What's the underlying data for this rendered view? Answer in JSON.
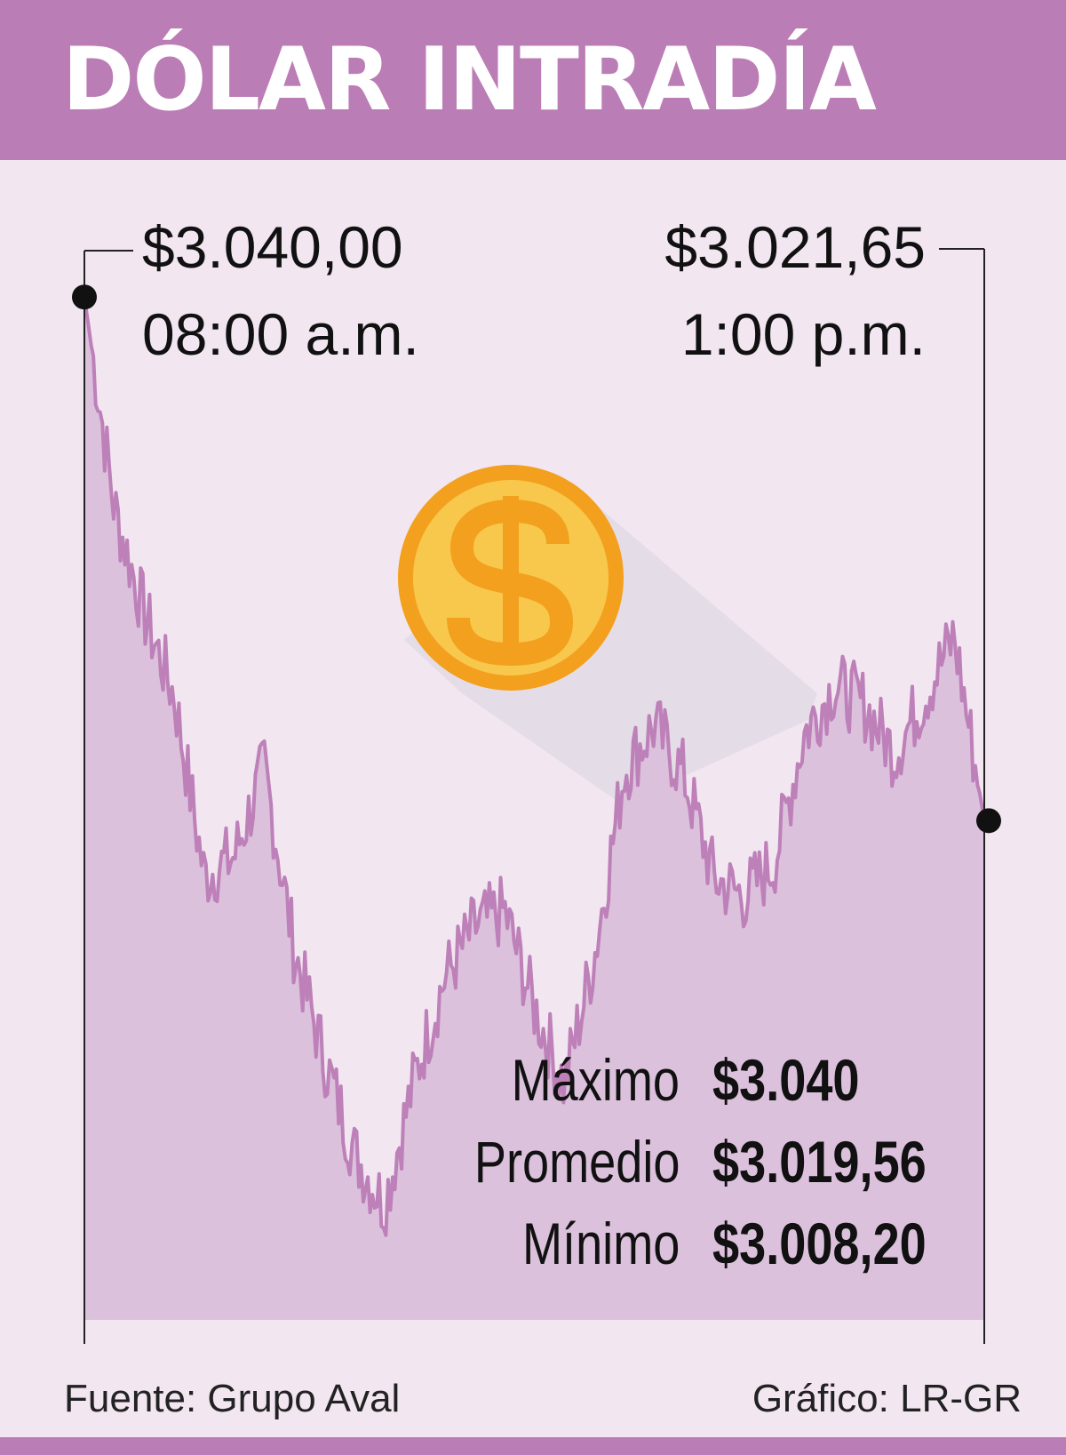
{
  "header": {
    "title": "DÓLAR INTRADÍA"
  },
  "open": {
    "price": "$3.040,00",
    "time": "08:00 a.m."
  },
  "close": {
    "price": "$3.021,65",
    "time": "1:00 p.m."
  },
  "stats": [
    {
      "label": "Máximo",
      "value": "$3.040"
    },
    {
      "label": "Promedio",
      "value": "$3.019,56"
    },
    {
      "label": "Mínimo",
      "value": "$3.008,20"
    }
  ],
  "footer": {
    "source": "Fuente: Grupo Aval",
    "credit": "Gráfico: LR-GR"
  },
  "colors": {
    "header": "#bb7db5",
    "background": "#f2e6f1",
    "area_fill": "#dcc1dd",
    "line": "#bd80b8",
    "coin_outer": "#f3a01e",
    "coin_inner": "#f8c84d"
  },
  "icons": {
    "coin": "dollar-coin-icon"
  },
  "chart_data": {
    "type": "area",
    "title": "DÓLAR INTRADÍA",
    "xlabel": "",
    "ylabel": "",
    "x_range": [
      "08:00",
      "13:00"
    ],
    "ylim": [
      3004,
      3042
    ],
    "grid": false,
    "series": [
      {
        "x": [
          "08:00",
          "08:10",
          "08:20",
          "08:30",
          "08:40",
          "08:50",
          "09:00",
          "09:10",
          "09:20",
          "09:30",
          "09:40",
          "09:50",
          "10:00",
          "10:10",
          "10:20",
          "10:30",
          "10:40",
          "10:50",
          "11:00",
          "11:10",
          "11:20",
          "11:30",
          "11:40",
          "11:50",
          "12:00",
          "12:10",
          "12:20",
          "12:30",
          "12:40",
          "12:50",
          "13:00"
        ],
        "values": [
          3040.0,
          3032.6,
          3028.9,
          3026.0,
          3019.7,
          3020.4,
          3023.5,
          3017.1,
          3013.3,
          3010.0,
          3008.2,
          3012.6,
          3016.1,
          3017.9,
          3018.5,
          3015.1,
          3012.4,
          3016.9,
          3023.4,
          3025.0,
          3023.2,
          3019.6,
          3019.0,
          3020.2,
          3024.7,
          3026.4,
          3025.7,
          3024.0,
          3026.0,
          3028.1,
          3021.65
        ]
      }
    ]
  }
}
